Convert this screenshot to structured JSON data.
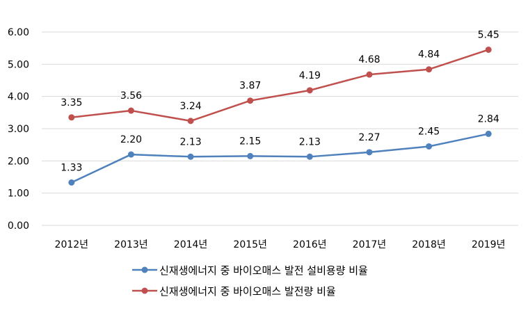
{
  "chart_data": {
    "type": "line",
    "categories": [
      "2012년",
      "2013년",
      "2014년",
      "2015년",
      "2016년",
      "2017년",
      "2018년",
      "2019년"
    ],
    "series": [
      {
        "name": "신재생에너지 중 바이오매스 발전 설비용량 비율",
        "color": "#4f81bd",
        "values": [
          1.33,
          2.2,
          2.13,
          2.15,
          2.13,
          2.27,
          2.45,
          2.84
        ],
        "labels": [
          "1.33",
          "2.20",
          "2.13",
          "2.15",
          "2.13",
          "2.27",
          "2.45",
          "2.84"
        ]
      },
      {
        "name": "신재생에너지 중 바이오매스 발전량 비율",
        "color": "#c0504d",
        "values": [
          3.35,
          3.56,
          3.24,
          3.87,
          4.19,
          4.68,
          4.84,
          5.45
        ],
        "labels": [
          "3.35",
          "3.56",
          "3.24",
          "3.87",
          "4.19",
          "4.68",
          "4.84",
          "5.45"
        ]
      }
    ],
    "y_ticks": [
      "0.00",
      "1.00",
      "2.00",
      "3.00",
      "4.00",
      "5.00",
      "6.00"
    ],
    "ylim": [
      0,
      6
    ],
    "grid": true,
    "grid_color": "#d9d9d9",
    "legend_position": "bottom"
  }
}
